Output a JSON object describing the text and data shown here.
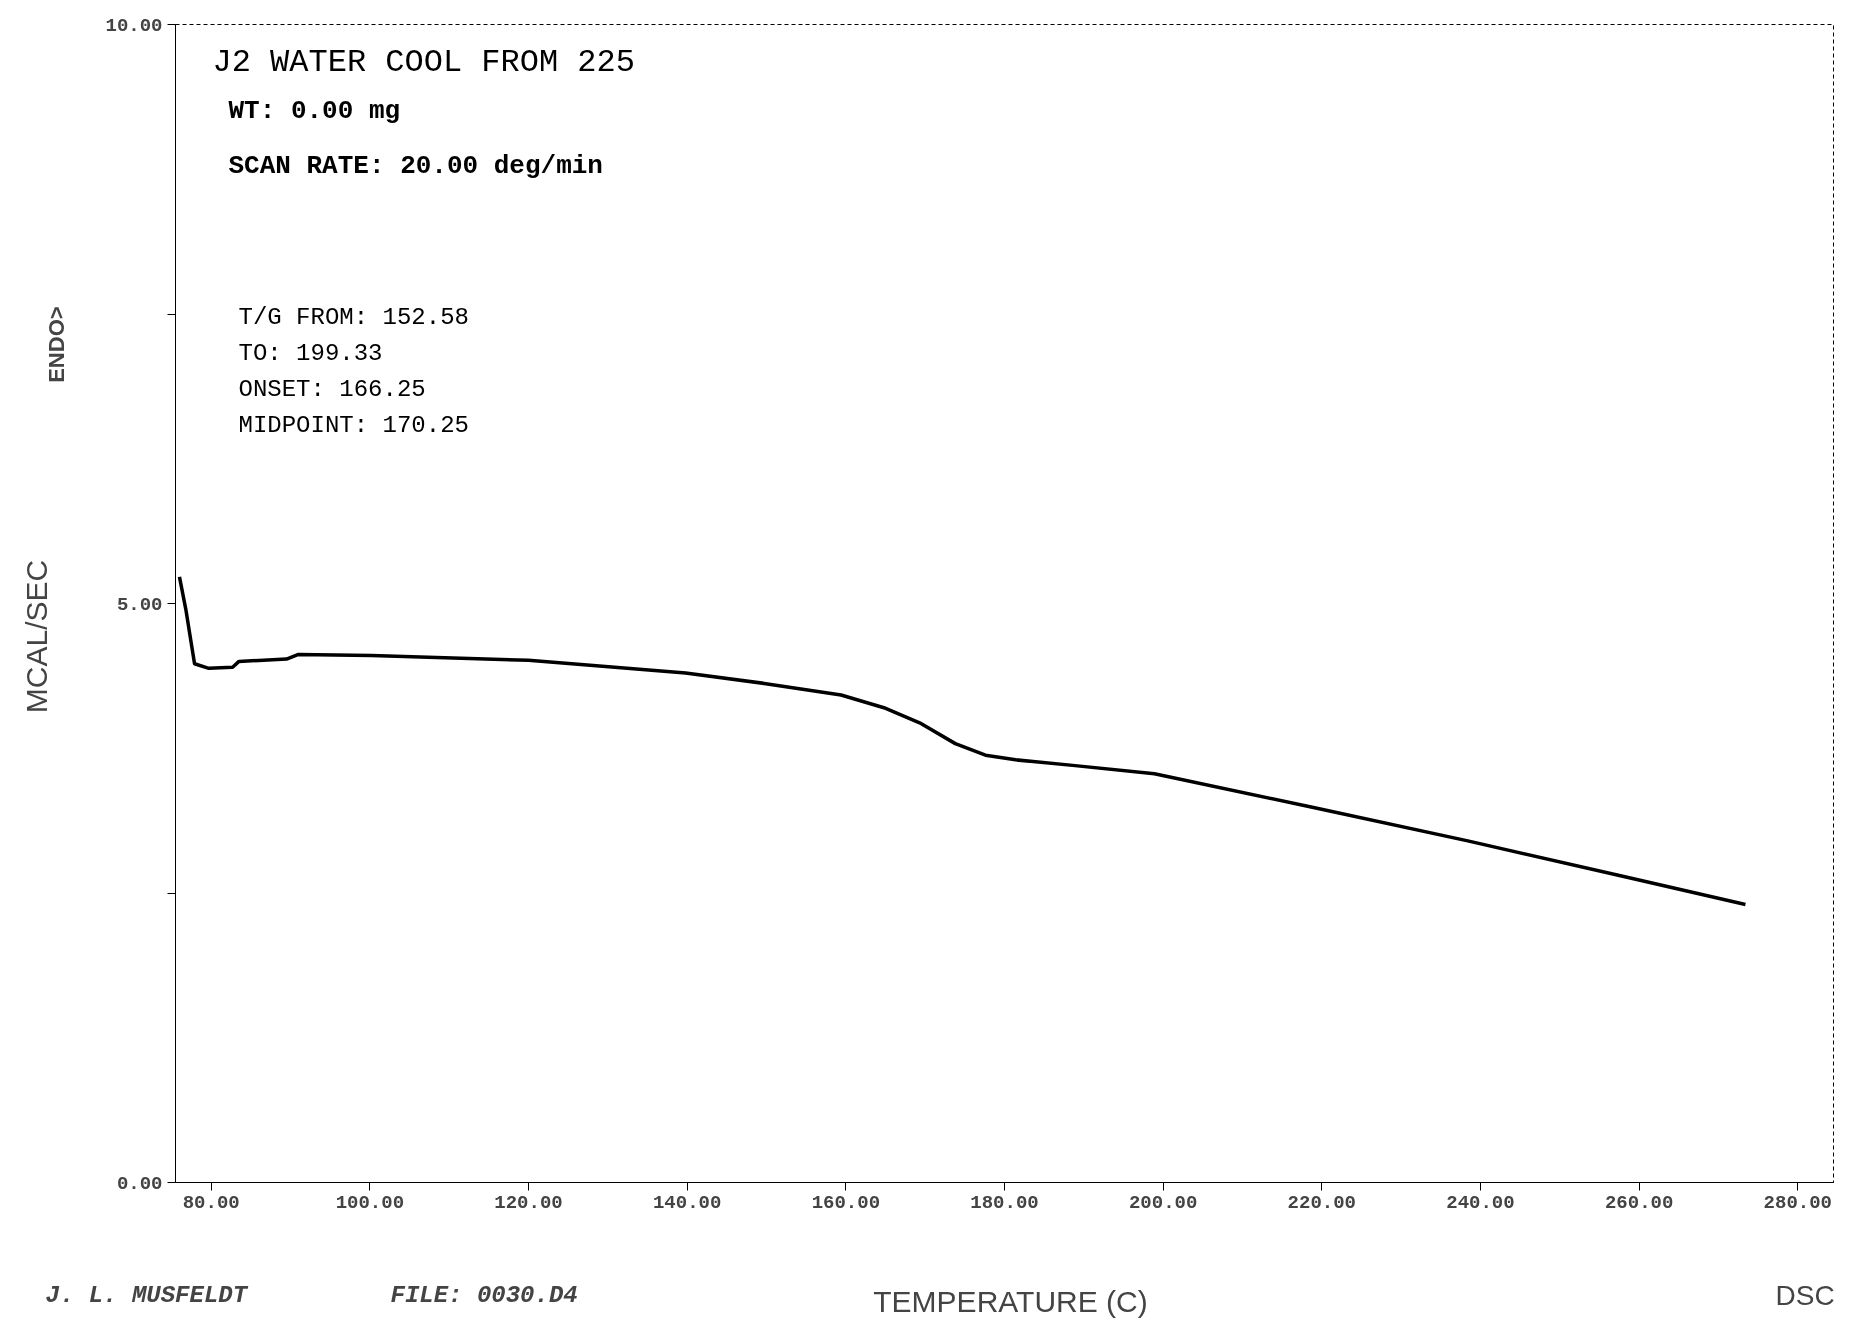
{
  "chart_data": {
    "type": "line",
    "title": "J2 WATER COOL FROM 225",
    "xlabel": "TEMPERATURE (C)",
    "ylabel": "MCAL/SEC",
    "annotations": [
      "WT: 0.00 mg",
      "SCAN RATE: 20.00 deg/min",
      "T/G FROM: 152.58",
      "TO: 199.33",
      "ONSET: 166.25",
      "MIDPOINT: 170.25",
      "ENDO>",
      "J. L. MUSFELDT",
      "FILE: 0030.D4",
      "DSC"
    ],
    "x": [
      76.0,
      76.8,
      77.9,
      79.7,
      82.7,
      83.5,
      89.5,
      91.0,
      100.2,
      120.0,
      139.8,
      149.7,
      159.4,
      164.8,
      169.3,
      173.8,
      177.6,
      181.4,
      188.9,
      198.9,
      218.8,
      238.4,
      258.2,
      273.4
    ],
    "series": [
      {
        "color": "#000000",
        "values": [
          5.23,
          4.95,
          4.48,
          4.44,
          4.45,
          4.5,
          4.52,
          4.56,
          4.55,
          4.51,
          4.4,
          4.31,
          4.21,
          4.1,
          3.97,
          3.79,
          3.69,
          3.65,
          3.6,
          3.53,
          3.24,
          2.95,
          2.64,
          2.4
        ]
      }
    ],
    "xlim": [
      75.5,
      284.5
    ],
    "xticks": [
      {
        "value": 80,
        "label": "80.00"
      },
      {
        "value": 100,
        "label": "100.00"
      },
      {
        "value": 120,
        "label": "120.00"
      },
      {
        "value": 140,
        "label": "140.00"
      },
      {
        "value": 160,
        "label": "160.00"
      },
      {
        "value": 180,
        "label": "180.00"
      },
      {
        "value": 200,
        "label": "200.00"
      },
      {
        "value": 220,
        "label": "220.00"
      },
      {
        "value": 240,
        "label": "240.00"
      },
      {
        "value": 260,
        "label": "260.00"
      },
      {
        "value": 280,
        "label": "280.00"
      }
    ],
    "ylim": [
      0,
      10
    ],
    "yticks": [
      {
        "value": 0,
        "label": "0.00"
      },
      {
        "value": 2.5,
        "label": null
      },
      {
        "value": 5,
        "label": "5.00"
      },
      {
        "value": 7.5,
        "label": null
      },
      {
        "value": 10,
        "label": "10.00"
      }
    ],
    "grid": false,
    "marker": "none",
    "line_style": "solid"
  }
}
